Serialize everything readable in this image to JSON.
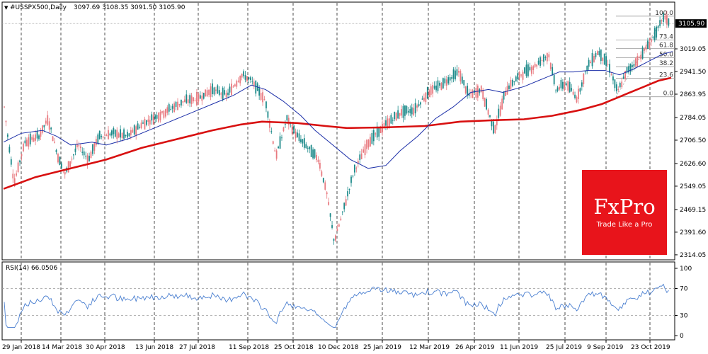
{
  "header": {
    "arrow_glyph": "▼",
    "symbol": "#USSPX500,Daily",
    "ohlc": "3097.69 3108.35 3091.50 3105.90"
  },
  "price_axis": {
    "ticks": [
      3019.05,
      2941.5,
      2863.95,
      2784.05,
      2706.5,
      2626.6,
      2549.05,
      2469.15,
      2391.6,
      2314.05
    ],
    "current_price_label": "3105.90",
    "current_price": 3105.9
  },
  "fib": {
    "levels": [
      {
        "label": "100.0",
        "price": 3131
      },
      {
        "label": "73.4",
        "price": 3049
      },
      {
        "label": "61.8",
        "price": 3020
      },
      {
        "label": "50.0",
        "price": 2989
      },
      {
        "label": "38.2",
        "price": 2958
      },
      {
        "label": "23.6",
        "price": 2918
      },
      {
        "label": "0.0",
        "price": 2855
      }
    ]
  },
  "rsi": {
    "label": "RSI(14) 66.0506",
    "axis_labels": [
      "100",
      "70",
      "30",
      "0"
    ],
    "levels": [
      70,
      30
    ]
  },
  "time_axis": {
    "labels": [
      "29 Jan 2018",
      "14 Mar 2018",
      "30 Apr 2018",
      "13 Jun 2018",
      "27 Jul 2018",
      "11 Sep 2018",
      "25 Oct 2018",
      "10 Dec 2018",
      "25 Jan 2019",
      "12 Mar 2019",
      "26 Apr 2019",
      "11 Jun 2019",
      "25 Jul 2019",
      "9 Sep 2019",
      "23 Oct 2019"
    ]
  },
  "logo": {
    "name": "FxPro",
    "tagline": "Trade Like a Pro",
    "color": "#e8141b"
  },
  "colors": {
    "bull_candle": "#1d8a8a",
    "bear_candle": "#e87a80",
    "ma_fast": "#1c2fa8",
    "ma_slow": "#d81010",
    "rsi_line": "#4a7fd0",
    "grid": "#000000"
  },
  "chart_data": {
    "type": "candlestick",
    "instrument": "#USSPX500",
    "timeframe": "Daily",
    "series": [
      {
        "x": [
          "29 Jan 2018",
          "14 Mar 2018",
          "30 Apr 2018",
          "13 Jun 2018",
          "27 Jul 2018",
          "11 Sep 2018",
          "25 Oct 2018",
          "10 Dec 2018",
          "25 Jan 2019",
          "12 Mar 2019",
          "26 Apr 2019",
          "11 Jun 2019",
          "25 Jul 2019",
          "9 Sep 2019",
          "23 Oct 2019"
        ],
        "close": [
          2710,
          2760,
          2670,
          2780,
          2840,
          2880,
          2680,
          2650,
          2650,
          2800,
          2930,
          2890,
          3010,
          2980,
          3010
        ]
      },
      {
        "x": [
          "29 Jan 2018",
          "14 Mar 2018",
          "30 Apr 2018",
          "13 Jun 2018",
          "27 Jul 2018",
          "11 Sep 2018",
          "25 Oct 2018",
          "10 Dec 2018",
          "25 Jan 2019",
          "12 Mar 2019",
          "26 Apr 2019",
          "11 Jun 2019",
          "25 Jul 2019",
          "9 Sep 2019",
          "23 Oct 2019"
        ],
        "ma_fast": [
          2730,
          2720,
          2690,
          2730,
          2790,
          2860,
          2800,
          2700,
          2620,
          2760,
          2860,
          2880,
          2940,
          2950,
          3000
        ]
      },
      {
        "x": [
          "29 Jan 2018",
          "14 Mar 2018",
          "30 Apr 2018",
          "13 Jun 2018",
          "27 Jul 2018",
          "11 Sep 2018",
          "25 Oct 2018",
          "10 Dec 2018",
          "25 Jan 2019",
          "12 Mar 2019",
          "26 Apr 2019",
          "11 Jun 2019",
          "25 Jul 2019",
          "9 Sep 2019",
          "23 Oct 2019"
        ],
        "ma_slow": [
          2550,
          2610,
          2650,
          2690,
          2730,
          2760,
          2760,
          2755,
          2750,
          2760,
          2775,
          2780,
          2800,
          2840,
          2910
        ]
      },
      {
        "x": [
          "29 Jan 2018",
          "14 Mar 2018",
          "30 Apr 2018",
          "13 Jun 2018",
          "27 Jul 2018",
          "11 Sep 2018",
          "25 Oct 2018",
          "10 Dec 2018",
          "25 Jan 2019",
          "12 Mar 2019",
          "26 Apr 2019",
          "11 Jun 2019",
          "25 Jul 2019",
          "9 Sep 2019",
          "23 Oct 2019"
        ],
        "rsi": [
          70,
          45,
          45,
          55,
          60,
          65,
          30,
          25,
          55,
          60,
          65,
          40,
          70,
          50,
          68
        ]
      }
    ],
    "ylim": [
      2314.05,
      3131
    ],
    "rsi_ylim": [
      0,
      100
    ]
  }
}
